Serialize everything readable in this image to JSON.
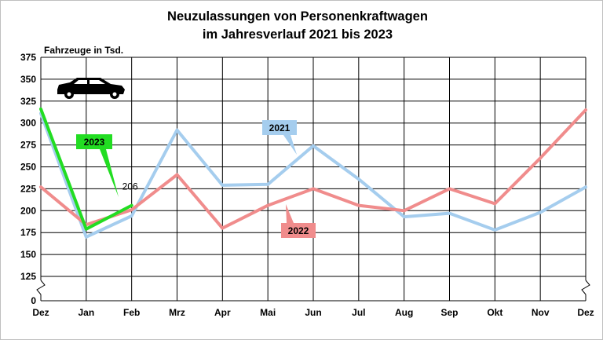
{
  "chart_data": {
    "type": "line",
    "title": [
      "Neuzulassungen von Personenkraftwagen",
      "im Jahresverlauf 2021 bis 2023"
    ],
    "ylabel": "Fahrzeuge in Tsd.",
    "categories": [
      "Dez",
      "Jan",
      "Feb",
      "Mrz",
      "Apr",
      "Mai",
      "Jun",
      "Jul",
      "Aug",
      "Sep",
      "Okt",
      "Nov",
      "Dez"
    ],
    "y_ticks": [
      "0",
      "125",
      "150",
      "175",
      "200",
      "225",
      "250",
      "275",
      "300",
      "325",
      "350",
      "375"
    ],
    "ylim": [
      125,
      375
    ],
    "y_axis_break": true,
    "grid": true,
    "series": [
      {
        "name": "2021",
        "color": "#a5cdee",
        "values": [
          311,
          170,
          194,
          292,
          229,
          230,
          274,
          236,
          193,
          197,
          178,
          198,
          227
        ]
      },
      {
        "name": "2022",
        "color": "#f08c8c",
        "values": [
          227,
          184,
          201,
          241,
          180,
          206,
          225,
          206,
          200,
          225,
          208,
          260,
          315
        ]
      },
      {
        "name": "2023",
        "color": "#22dd22",
        "values": [
          316,
          179,
          206,
          null,
          null,
          null,
          null,
          null,
          null,
          null,
          null,
          null,
          null
        ]
      }
    ],
    "annotations": [
      {
        "text": "206",
        "series": "2023",
        "category": "Feb"
      }
    ],
    "icon": "car-icon"
  }
}
